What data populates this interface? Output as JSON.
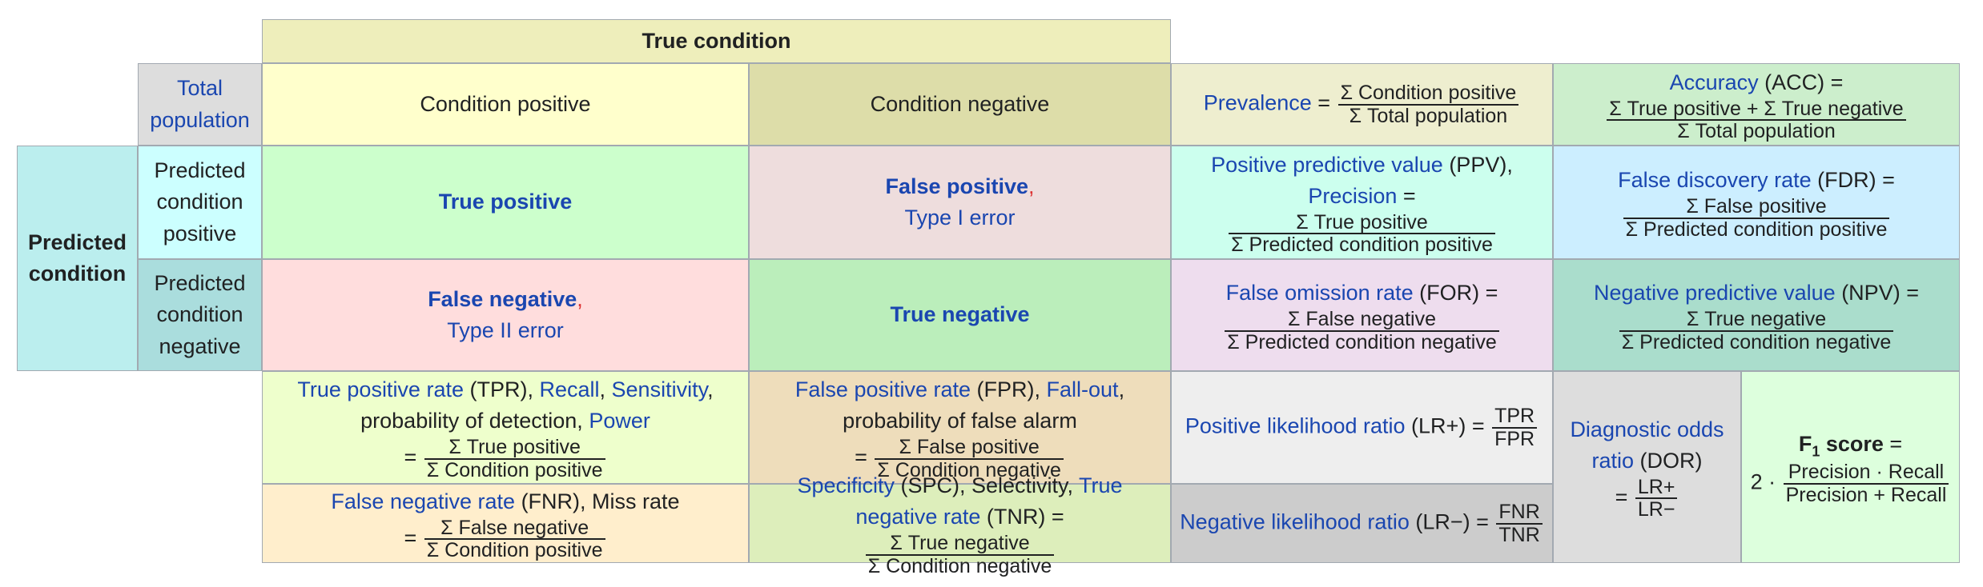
{
  "cells": [
    {
      "lines": [
        [
          {
            "text": "True condition",
            "style": "bold"
          }
        ]
      ]
    },
    {
      "lines": [
        [
          {
            "text": "Total population",
            "style": "link"
          }
        ]
      ]
    },
    {
      "lines": [
        [
          "Condition positive"
        ]
      ]
    },
    {
      "lines": [
        [
          "Condition negative"
        ]
      ]
    },
    {
      "lines": [
        [
          {
            "text": "Prevalence",
            "style": "link"
          },
          " = ",
          {
            "num": "Σ Condition positive",
            "den": "Σ Total population"
          }
        ]
      ]
    },
    {
      "lines": [
        [
          {
            "text": "Accuracy",
            "style": "link"
          },
          " (ACC) ="
        ],
        [
          {
            "num": "Σ True positive + Σ True negative",
            "den": "Σ Total population"
          }
        ]
      ]
    },
    {
      "lines": [
        [
          {
            "text": "Predicted condition",
            "style": "bold"
          }
        ]
      ]
    },
    {
      "lines": [
        [
          "Predicted condition positive"
        ]
      ]
    },
    {
      "lines": [
        [
          {
            "text": "True positive",
            "style": "bold-link"
          }
        ]
      ]
    },
    {
      "lines": [
        [
          {
            "text": "False positive",
            "style": "bold-link"
          },
          {
            "text": ",",
            "style": "red"
          }
        ],
        [
          {
            "text": "Type I error",
            "style": "link"
          }
        ]
      ]
    },
    {
      "lines": [
        [
          {
            "text": "Positive predictive value",
            "style": "link"
          },
          " (PPV),"
        ],
        [
          {
            "text": "Precision",
            "style": "link"
          },
          " ="
        ],
        [
          {
            "num": "Σ True positive",
            "den": "Σ Predicted condition positive"
          }
        ]
      ]
    },
    {
      "lines": [
        [
          {
            "text": "False discovery rate",
            "style": "link"
          },
          " (FDR) ="
        ],
        [
          {
            "num": "Σ False positive",
            "den": "Σ Predicted condition positive"
          }
        ]
      ]
    },
    {
      "lines": [
        [
          "Predicted condition negative"
        ]
      ]
    },
    {
      "lines": [
        [
          {
            "text": "False negative",
            "style": "bold-link"
          },
          {
            "text": ",",
            "style": "red"
          }
        ],
        [
          {
            "text": "Type II error",
            "style": "link"
          }
        ]
      ]
    },
    {
      "lines": [
        [
          {
            "text": "True negative",
            "style": "bold-link"
          }
        ]
      ]
    },
    {
      "lines": [
        [
          {
            "text": "False omission rate",
            "style": "link"
          },
          " (FOR) ="
        ],
        [
          {
            "num": "Σ False negative",
            "den": "Σ Predicted condition negative"
          }
        ]
      ]
    },
    {
      "lines": [
        [
          {
            "text": "Negative predictive value",
            "style": "link"
          },
          " (NPV) ="
        ],
        [
          {
            "num": "Σ True negative",
            "den": "Σ Predicted condition negative"
          }
        ]
      ]
    },
    {
      "lines": [
        [
          {
            "text": "True positive rate",
            "style": "link"
          },
          " (TPR), ",
          {
            "text": "Recall",
            "style": "link"
          },
          ", ",
          {
            "text": "Sensitivity",
            "style": "link"
          },
          ","
        ],
        [
          "probability of detection, ",
          {
            "text": "Power",
            "style": "link"
          }
        ],
        [
          "= ",
          {
            "num": "Σ True positive",
            "den": "Σ Condition positive"
          }
        ]
      ]
    },
    {
      "lines": [
        [
          {
            "text": "False positive rate",
            "style": "link"
          },
          " (FPR), ",
          {
            "text": "Fall-out",
            "style": "link"
          },
          ","
        ],
        [
          "probability of false alarm"
        ],
        [
          "= ",
          {
            "num": "Σ False positive",
            "den": "Σ Condition negative"
          }
        ]
      ]
    },
    {
      "lines": [
        [
          {
            "text": "Positive likelihood ratio",
            "style": "link"
          },
          " (LR+) = ",
          {
            "num": "TPR",
            "den": "FPR"
          }
        ]
      ]
    },
    {
      "lines": [
        [
          {
            "text": "Diagnostic odds ratio",
            "style": "link"
          },
          " (DOR)"
        ],
        [
          "= ",
          {
            "num": "LR+",
            "den": "LR−"
          }
        ]
      ]
    },
    {
      "lines": [
        [
          {
            "text": "F",
            "style": "bold"
          },
          {
            "text": "1",
            "style": "sub"
          },
          {
            "text": " score",
            "style": "bold"
          },
          " ="
        ],
        [
          "2 · ",
          {
            "num": "Precision · Recall",
            "den": "Precision + Recall"
          }
        ]
      ]
    },
    {
      "lines": [
        [
          {
            "text": "False negative rate",
            "style": "link"
          },
          " (FNR), Miss rate"
        ],
        [
          "= ",
          {
            "num": "Σ False negative",
            "den": "Σ Condition positive"
          }
        ]
      ]
    },
    {
      "lines": [
        [
          {
            "text": "Specificity",
            "style": "link"
          },
          " (SPC), Selectivity, ",
          {
            "text": "True negative rate",
            "style": "link"
          },
          " (TNR) = ",
          {
            "num": "Σ True negative",
            "den": "Σ Condition negative"
          }
        ]
      ]
    },
    {
      "lines": [
        [
          {
            "text": "Negative likelihood ratio",
            "style": "link"
          },
          " (LR−) = ",
          {
            "num": "FNR",
            "den": "TNR"
          }
        ]
      ]
    }
  ]
}
